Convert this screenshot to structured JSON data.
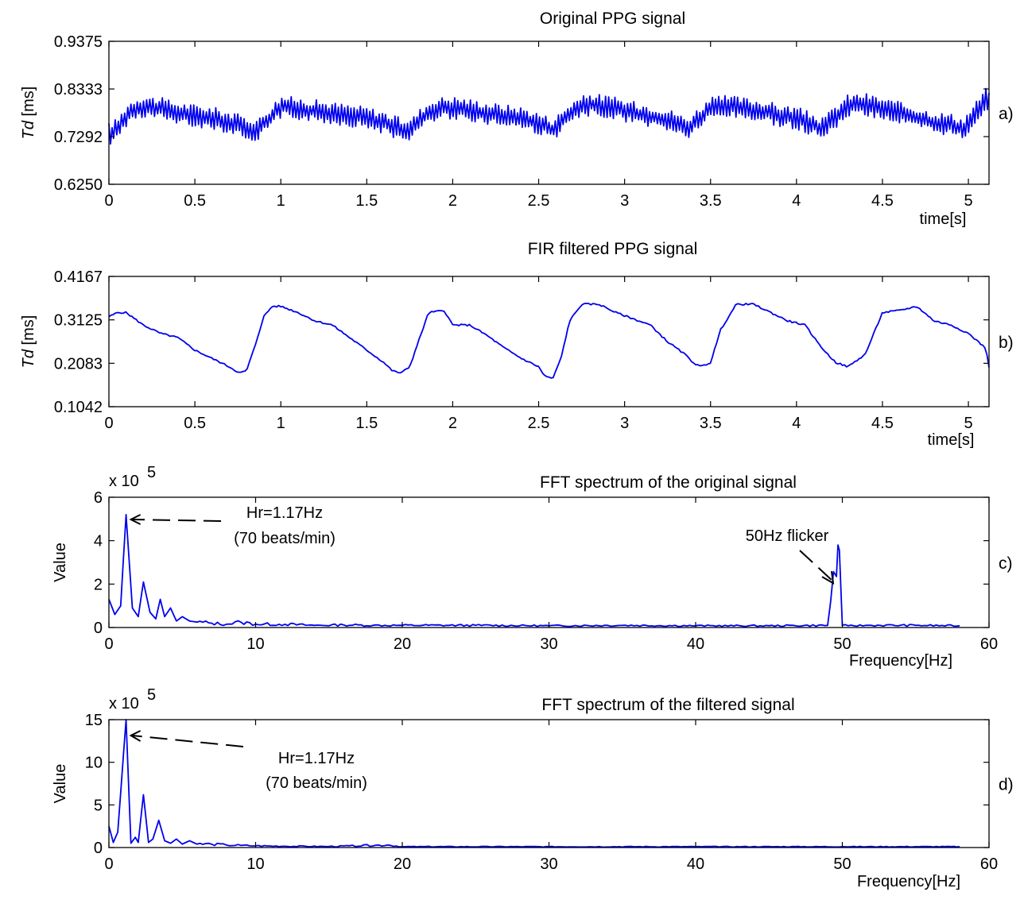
{
  "chart_data": [
    {
      "panel": "a)",
      "type": "line",
      "title": "Original PPG signal",
      "xlabel": "time[s]",
      "ylabel": "Td [ms]",
      "ylabel_italic": "Td",
      "ylabel_unit": " [ms]",
      "xlim": [
        0,
        5.12
      ],
      "ylim": [
        0.625,
        0.9375
      ],
      "xticks": [
        0,
        0.5,
        1,
        1.5,
        2,
        2.5,
        3,
        3.5,
        4,
        4.5,
        5
      ],
      "xtick_labels": [
        "0",
        "0.5",
        "1",
        "1.5",
        "2",
        "2.5",
        "3",
        "3.5",
        "4",
        "4.5",
        "5"
      ],
      "yticks": [
        0.625,
        0.7292,
        0.8333,
        0.9375
      ],
      "ytick_labels": [
        "0.6250",
        "0.7292",
        "0.8333",
        "0.9375"
      ],
      "series_color": "#0000ee",
      "series": [
        {
          "x": [
            0,
            0.05,
            0.1,
            0.15,
            0.2,
            0.3,
            0.4,
            0.5,
            0.6,
            0.7,
            0.8,
            0.87,
            0.93,
            1.0,
            1.1,
            1.2,
            1.3,
            1.4,
            1.5,
            1.6,
            1.7,
            1.76,
            1.82,
            1.9,
            2.0,
            2.1,
            2.2,
            2.3,
            2.4,
            2.5,
            2.58,
            2.63,
            2.7,
            2.8,
            2.9,
            3.0,
            3.1,
            3.2,
            3.3,
            3.36,
            3.42,
            3.5,
            3.6,
            3.7,
            3.8,
            3.9,
            4.0,
            4.1,
            4.15,
            4.22,
            4.3,
            4.4,
            4.5,
            4.6,
            4.7,
            4.8,
            4.9,
            4.97,
            5.03,
            5.1,
            5.12
          ],
          "y": [
            0.735,
            0.745,
            0.775,
            0.79,
            0.795,
            0.79,
            0.78,
            0.775,
            0.77,
            0.76,
            0.748,
            0.745,
            0.768,
            0.795,
            0.79,
            0.785,
            0.78,
            0.775,
            0.77,
            0.76,
            0.745,
            0.745,
            0.77,
            0.79,
            0.793,
            0.787,
            0.78,
            0.775,
            0.77,
            0.758,
            0.745,
            0.76,
            0.785,
            0.8,
            0.795,
            0.785,
            0.778,
            0.77,
            0.76,
            0.745,
            0.765,
            0.79,
            0.795,
            0.79,
            0.785,
            0.775,
            0.77,
            0.755,
            0.745,
            0.77,
            0.797,
            0.8,
            0.79,
            0.78,
            0.77,
            0.76,
            0.755,
            0.745,
            0.775,
            0.81,
            0.815
          ]
        }
      ],
      "noise_amplitude": 0.025,
      "panel_label": "a)"
    },
    {
      "panel": "b)",
      "type": "line",
      "title": "FIR filtered PPG signal",
      "xlabel": "time[s]",
      "ylabel": "Td [ms]",
      "ylabel_italic": "Td",
      "ylabel_unit": " [ms]",
      "xlim": [
        0,
        5.12
      ],
      "ylim": [
        0.1042,
        0.4167
      ],
      "xticks": [
        0,
        0.5,
        1,
        1.5,
        2,
        2.5,
        3,
        3.5,
        4,
        4.5,
        5
      ],
      "xtick_labels": [
        "0",
        "0.5",
        "1",
        "1.5",
        "2",
        "2.5",
        "3",
        "3.5",
        "4",
        "4.5",
        "5"
      ],
      "yticks": [
        0.1042,
        0.2083,
        0.3125,
        0.4167
      ],
      "ytick_labels": [
        "0.1042",
        "0.2083",
        "0.3125",
        "0.4167"
      ],
      "series_color": "#0000ee",
      "series": [
        {
          "x": [
            0,
            0.05,
            0.1,
            0.2,
            0.3,
            0.4,
            0.5,
            0.6,
            0.7,
            0.76,
            0.8,
            0.85,
            0.9,
            0.95,
            1.0,
            1.1,
            1.2,
            1.3,
            1.4,
            1.5,
            1.6,
            1.65,
            1.7,
            1.75,
            1.8,
            1.86,
            1.95,
            2.0,
            2.1,
            2.2,
            2.3,
            2.4,
            2.5,
            2.53,
            2.58,
            2.63,
            2.68,
            2.75,
            2.85,
            2.95,
            3.05,
            3.15,
            3.25,
            3.35,
            3.4,
            3.44,
            3.5,
            3.56,
            3.65,
            3.75,
            3.85,
            3.95,
            4.05,
            4.12,
            4.18,
            4.23,
            4.3,
            4.4,
            4.5,
            4.6,
            4.7,
            4.8,
            4.9,
            5.0,
            5.1,
            5.12
          ],
          "y": [
            0.32,
            0.33,
            0.33,
            0.3,
            0.28,
            0.27,
            0.24,
            0.22,
            0.2,
            0.185,
            0.19,
            0.25,
            0.32,
            0.345,
            0.345,
            0.33,
            0.31,
            0.3,
            0.27,
            0.24,
            0.21,
            0.19,
            0.185,
            0.2,
            0.26,
            0.33,
            0.335,
            0.3,
            0.3,
            0.275,
            0.245,
            0.22,
            0.2,
            0.18,
            0.17,
            0.22,
            0.31,
            0.35,
            0.35,
            0.33,
            0.315,
            0.3,
            0.26,
            0.23,
            0.21,
            0.2,
            0.21,
            0.29,
            0.35,
            0.35,
            0.33,
            0.31,
            0.3,
            0.26,
            0.23,
            0.21,
            0.2,
            0.23,
            0.33,
            0.335,
            0.345,
            0.31,
            0.3,
            0.28,
            0.245,
            0.2
          ]
        }
      ],
      "panel_label": "b)"
    },
    {
      "panel": "c)",
      "type": "line",
      "title": "FFT spectrum of the original signal",
      "xlabel": "Frequency[Hz]",
      "ylabel": "Value",
      "y_multiplier": "x 10",
      "y_multiplier_exp": "5",
      "xlim": [
        0,
        60
      ],
      "ylim": [
        0,
        6
      ],
      "xticks": [
        0,
        10,
        20,
        30,
        40,
        50,
        60
      ],
      "xtick_labels": [
        "0",
        "10",
        "20",
        "30",
        "40",
        "50",
        "60"
      ],
      "yticks": [
        0,
        2,
        4,
        6
      ],
      "ytick_labels": [
        "0",
        "2",
        "4",
        "6"
      ],
      "series_color": "#0000ee",
      "series": [
        {
          "x": [
            0,
            0.4,
            0.8,
            1.17,
            1.6,
            2.0,
            2.35,
            2.8,
            3.2,
            3.5,
            3.8,
            4.2,
            4.6,
            5.0,
            5.5,
            6.0,
            7.0,
            8.0,
            9.0,
            10.0,
            12.0,
            14.0,
            16.0,
            18.0,
            20.0,
            25.0,
            30.0,
            35.0,
            40.0,
            45.0,
            49.0,
            49.7,
            50.0,
            50.4,
            52.0,
            55.0,
            58.0
          ],
          "y": [
            1.3,
            0.6,
            1.0,
            5.2,
            0.9,
            0.5,
            2.1,
            0.7,
            0.4,
            1.3,
            0.5,
            0.9,
            0.3,
            0.5,
            0.3,
            0.25,
            0.2,
            0.15,
            0.25,
            0.15,
            0.15,
            0.1,
            0.12,
            0.1,
            0.1,
            0.1,
            0.08,
            0.1,
            0.08,
            0.08,
            0.1,
            3.8,
            0.1,
            0.08,
            0.1,
            0.1,
            0.08
          ]
        }
      ],
      "annotations": [
        {
          "id": "hr",
          "line1": "Hr=1.17Hz",
          "line2": "(70 beats/min)",
          "target_x": 1.17,
          "target_y": 5.2
        },
        {
          "id": "flicker",
          "line1": "50Hz flicker",
          "target_x": 49.7,
          "target_y": 3.8
        }
      ],
      "panel_label": "c)"
    },
    {
      "panel": "d)",
      "type": "line",
      "title": "FFT spectrum of the filtered signal",
      "xlabel": "Frequency[Hz]",
      "ylabel": "Value",
      "y_multiplier": "x 10",
      "y_multiplier_exp": "5",
      "xlim": [
        0,
        60
      ],
      "ylim": [
        0,
        15
      ],
      "xticks": [
        0,
        10,
        20,
        30,
        40,
        50,
        60
      ],
      "xtick_labels": [
        "0",
        "10",
        "20",
        "30",
        "40",
        "50",
        "60"
      ],
      "yticks": [
        0,
        5,
        10,
        15
      ],
      "ytick_labels": [
        "0",
        "5",
        "10",
        "15"
      ],
      "series_color": "#0000ee",
      "series": [
        {
          "x": [
            0,
            0.3,
            0.6,
            1.17,
            1.5,
            1.8,
            2.0,
            2.35,
            2.7,
            3.0,
            3.4,
            3.8,
            4.2,
            4.6,
            5.0,
            5.5,
            6.0,
            7.0,
            8.0,
            9.0,
            10.0,
            12.0,
            15.0,
            19.0,
            20.0,
            30.0,
            40.0,
            50.0,
            58.0
          ],
          "y": [
            2.5,
            0.6,
            1.8,
            15.0,
            0.5,
            1.2,
            0.6,
            6.2,
            0.6,
            1.0,
            3.2,
            0.8,
            0.5,
            1.0,
            0.4,
            0.8,
            0.4,
            0.4,
            0.3,
            0.25,
            0.2,
            0.15,
            0.12,
            0.3,
            0.1,
            0.1,
            0.1,
            0.1,
            0.1
          ]
        }
      ],
      "annotations": [
        {
          "id": "hr",
          "line1": "Hr=1.17Hz",
          "line2": "(70 beats/min)",
          "target_x": 1.17,
          "target_y": 14.8
        }
      ],
      "panel_label": "d)"
    }
  ]
}
